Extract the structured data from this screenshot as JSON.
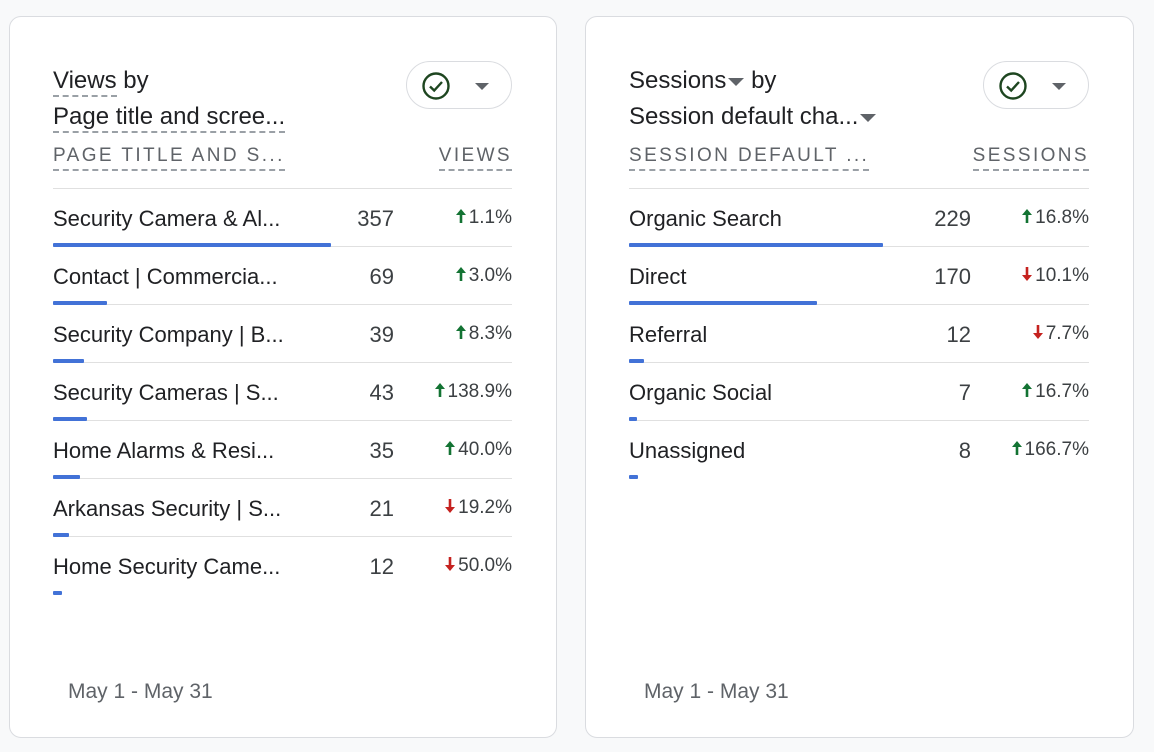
{
  "cards": [
    {
      "title_metric": "Views",
      "title_by": "by",
      "title_dimension": "Page title and scree...",
      "col_dimension": "PAGE TITLE AND S...",
      "col_metric": "VIEWS",
      "rows": [
        {
          "name": "Security Camera & Al...",
          "value": "357",
          "change": "1.1%",
          "dir": "up",
          "bar": 0.59
        },
        {
          "name": "Contact | Commercia...",
          "value": "69",
          "change": "3.0%",
          "dir": "up",
          "bar": 0.115
        },
        {
          "name": "Security Company | B...",
          "value": "39",
          "change": "8.3%",
          "dir": "up",
          "bar": 0.065
        },
        {
          "name": "Security Cameras | S...",
          "value": "43",
          "change": "138.9%",
          "dir": "up",
          "bar": 0.072
        },
        {
          "name": "Home Alarms & Resi...",
          "value": "35",
          "change": "40.0%",
          "dir": "up",
          "bar": 0.058
        },
        {
          "name": "Arkansas Security | S...",
          "value": "21",
          "change": "19.2%",
          "dir": "down",
          "bar": 0.035
        },
        {
          "name": "Home Security Came...",
          "value": "12",
          "change": "50.0%",
          "dir": "down",
          "bar": 0.02
        }
      ],
      "footer": "May 1 - May 31"
    },
    {
      "title_metric": "Sessions",
      "title_by": "by",
      "title_dimension": "Session default cha...",
      "col_dimension": "SESSION DEFAULT ...",
      "col_metric": "SESSIONS",
      "rows": [
        {
          "name": "Organic Search",
          "value": "229",
          "change": "16.8%",
          "dir": "up",
          "bar": 0.54
        },
        {
          "name": "Direct",
          "value": "170",
          "change": "10.1%",
          "dir": "down",
          "bar": 0.4
        },
        {
          "name": "Referral",
          "value": "12",
          "change": "7.7%",
          "dir": "down",
          "bar": 0.032
        },
        {
          "name": "Organic Social",
          "value": "7",
          "change": "16.7%",
          "dir": "up",
          "bar": 0.018
        },
        {
          "name": "Unassigned",
          "value": "8",
          "change": "166.7%",
          "dir": "up",
          "bar": 0.02
        }
      ],
      "footer": "May 1 - May 31"
    }
  ],
  "colors": {
    "up": "#137333",
    "down": "#c5221f",
    "bar": "#4272d7"
  },
  "icons": {
    "compare": "check-circle-icon",
    "menu": "caret-down-icon"
  }
}
